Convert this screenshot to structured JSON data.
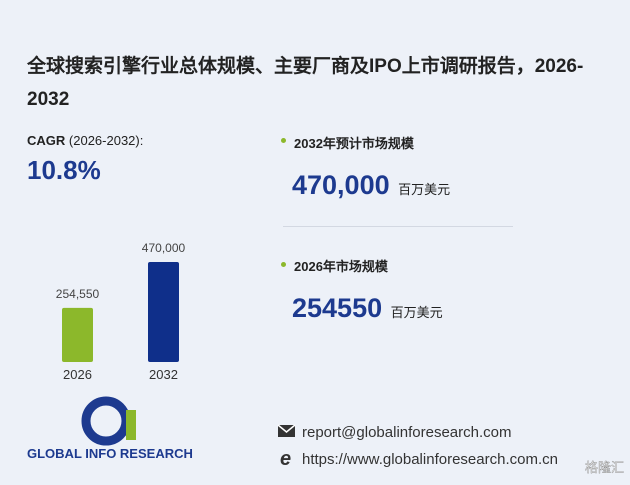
{
  "header": {
    "title": "全球搜索引擎行业总体规模、主要厂商及IPO上市调研报告，2026-2032"
  },
  "cagr": {
    "label": "CAGR",
    "period": "(2026-2032):",
    "value": "10.8%"
  },
  "stats": [
    {
      "label": "2032年预计市场规模",
      "value": "470,000",
      "unit": "百万美元"
    },
    {
      "label": "2026年市场规模",
      "value": "254550",
      "unit": "百万美元"
    }
  ],
  "chart_data": {
    "type": "bar",
    "categories": [
      "2026",
      "2032"
    ],
    "values": [
      254550,
      470000
    ],
    "value_labels": [
      "254,550",
      "470,000"
    ],
    "colors": [
      "#8cb82b",
      "#0f2f8a"
    ]
  },
  "logo": {
    "mark": "Gi",
    "text": "GLOBAL INFO RESEARCH"
  },
  "contact": {
    "email": "report@globalinforesearch.com",
    "website": "https://www.globalinforesearch.com.cn"
  },
  "badge": "格隆汇"
}
